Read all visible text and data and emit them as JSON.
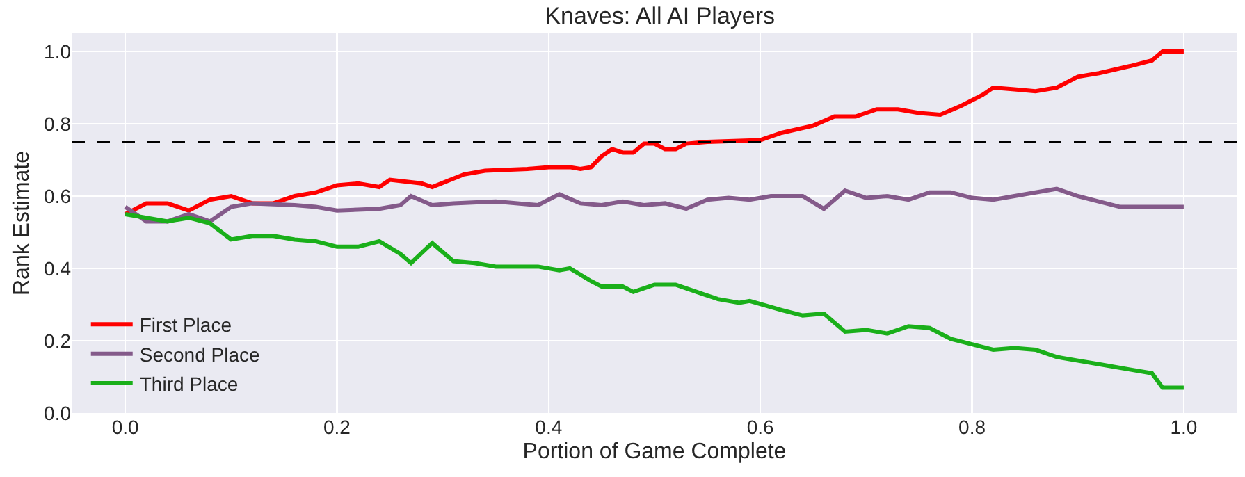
{
  "chart_data": {
    "type": "line",
    "title": "Knaves: All AI Players",
    "xlabel": "Portion of Game Complete",
    "ylabel": "Rank Estimate",
    "xlim": [
      -0.05,
      1.05
    ],
    "xticks": [
      {
        "value": 0,
        "label": "0.0"
      },
      0.2,
      0.4,
      0.6,
      0.8,
      {
        "value": 1,
        "label": "1.0"
      }
    ],
    "ylim": [
      0,
      1.05
    ],
    "yticks": [
      {
        "value": 0,
        "label": "0.0"
      },
      0.2,
      0.4,
      0.6,
      0.8,
      {
        "value": 1,
        "label": "1.0"
      }
    ],
    "grid": true,
    "legend": "bottom left",
    "line_style": "solid",
    "marker": "none",
    "ref_lines": [
      {
        "axis": "y",
        "value": 0.75,
        "color": "#000000",
        "line_style": "dashed"
      }
    ],
    "series": [
      {
        "name": "First Place",
        "color": "#ff0000",
        "x": [
          0,
          0.02,
          0.04,
          0.06,
          0.08,
          0.1,
          0.12,
          0.14,
          0.16,
          0.18,
          0.2,
          0.22,
          0.24,
          0.25,
          0.28,
          0.29,
          0.32,
          0.34,
          0.38,
          0.4,
          0.42,
          0.43,
          0.44,
          0.45,
          0.46,
          0.47,
          0.48,
          0.49,
          0.5,
          0.51,
          0.52,
          0.53,
          0.55,
          0.6,
          0.62,
          0.65,
          0.67,
          0.69,
          0.71,
          0.73,
          0.75,
          0.77,
          0.79,
          0.81,
          0.82,
          0.84,
          0.86,
          0.88,
          0.9,
          0.92,
          0.95,
          0.97,
          0.98,
          1.0
        ],
        "values": [
          0.55,
          0.58,
          0.58,
          0.56,
          0.59,
          0.6,
          0.58,
          0.58,
          0.6,
          0.61,
          0.63,
          0.635,
          0.625,
          0.645,
          0.635,
          0.625,
          0.66,
          0.67,
          0.675,
          0.68,
          0.68,
          0.675,
          0.68,
          0.71,
          0.73,
          0.72,
          0.72,
          0.745,
          0.745,
          0.73,
          0.73,
          0.745,
          0.75,
          0.755,
          0.775,
          0.795,
          0.82,
          0.82,
          0.84,
          0.84,
          0.83,
          0.825,
          0.85,
          0.88,
          0.9,
          0.895,
          0.89,
          0.9,
          0.93,
          0.94,
          0.96,
          0.975,
          1.0,
          1.0
        ]
      },
      {
        "name": "Second Place",
        "color": "#845a8a",
        "x": [
          0,
          0.02,
          0.04,
          0.06,
          0.08,
          0.1,
          0.12,
          0.16,
          0.18,
          0.2,
          0.24,
          0.26,
          0.27,
          0.29,
          0.31,
          0.35,
          0.39,
          0.41,
          0.43,
          0.45,
          0.47,
          0.49,
          0.51,
          0.53,
          0.55,
          0.57,
          0.59,
          0.61,
          0.64,
          0.66,
          0.68,
          0.7,
          0.72,
          0.74,
          0.76,
          0.78,
          0.8,
          0.82,
          0.84,
          0.86,
          0.88,
          0.9,
          0.92,
          0.94,
          0.97,
          1.0
        ],
        "values": [
          0.57,
          0.53,
          0.53,
          0.55,
          0.53,
          0.57,
          0.58,
          0.575,
          0.57,
          0.56,
          0.565,
          0.575,
          0.6,
          0.575,
          0.58,
          0.585,
          0.575,
          0.605,
          0.58,
          0.575,
          0.585,
          0.575,
          0.58,
          0.565,
          0.59,
          0.595,
          0.59,
          0.6,
          0.6,
          0.565,
          0.615,
          0.595,
          0.6,
          0.59,
          0.61,
          0.61,
          0.595,
          0.59,
          0.6,
          0.61,
          0.62,
          0.6,
          0.585,
          0.57,
          0.57,
          0.57
        ]
      },
      {
        "name": "Third Place",
        "color": "#1aaf1a",
        "x": [
          0,
          0.04,
          0.06,
          0.08,
          0.1,
          0.12,
          0.14,
          0.16,
          0.18,
          0.2,
          0.22,
          0.24,
          0.26,
          0.27,
          0.29,
          0.31,
          0.33,
          0.35,
          0.39,
          0.41,
          0.42,
          0.44,
          0.45,
          0.47,
          0.48,
          0.5,
          0.52,
          0.54,
          0.56,
          0.58,
          0.59,
          0.62,
          0.64,
          0.66,
          0.68,
          0.7,
          0.72,
          0.74,
          0.76,
          0.78,
          0.8,
          0.82,
          0.84,
          0.86,
          0.88,
          0.9,
          0.92,
          0.95,
          0.97,
          0.98,
          1.0
        ],
        "values": [
          0.55,
          0.53,
          0.54,
          0.525,
          0.48,
          0.49,
          0.49,
          0.48,
          0.475,
          0.46,
          0.46,
          0.475,
          0.44,
          0.415,
          0.47,
          0.42,
          0.415,
          0.405,
          0.405,
          0.395,
          0.4,
          0.365,
          0.35,
          0.35,
          0.335,
          0.355,
          0.355,
          0.335,
          0.315,
          0.305,
          0.31,
          0.285,
          0.27,
          0.275,
          0.225,
          0.23,
          0.22,
          0.24,
          0.235,
          0.205,
          0.19,
          0.175,
          0.18,
          0.175,
          0.155,
          0.145,
          0.135,
          0.12,
          0.11,
          0.07,
          0.07
        ]
      }
    ]
  }
}
